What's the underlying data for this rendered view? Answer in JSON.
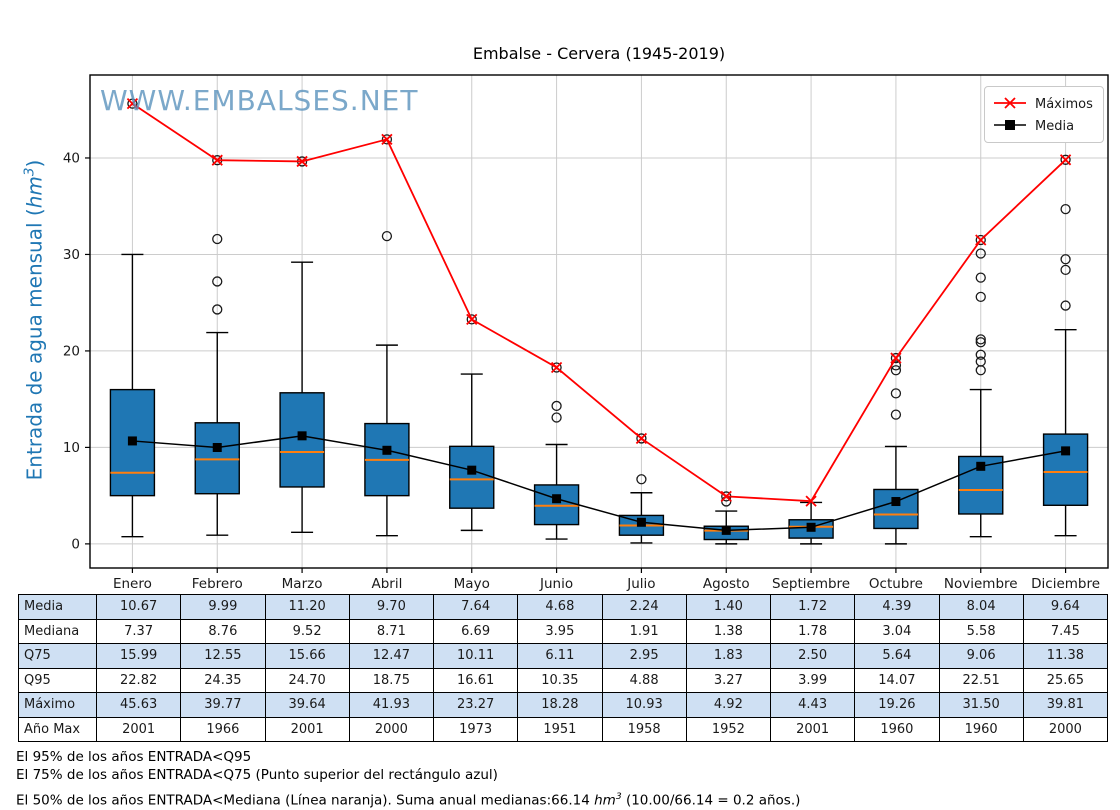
{
  "title": "Embalse - Cervera (1945-2019)",
  "watermark": "WWW.EMBALSES.NET",
  "y_axis": {
    "label_prefix": "Entrada de agua mensual (",
    "label_unit": "hm",
    "label_sup": "3",
    "label_suffix": ")"
  },
  "legend": {
    "maximos_label": "Máximos",
    "media_label": "Media"
  },
  "table": {
    "stripe_color": "#cfe0f3",
    "rows": [
      {
        "label": "Media",
        "values": [
          "10.67",
          "9.99",
          "11.20",
          "9.70",
          "7.64",
          "4.68",
          "2.24",
          "1.40",
          "1.72",
          "4.39",
          "8.04",
          "9.64"
        ]
      },
      {
        "label": "Mediana",
        "values": [
          "7.37",
          "8.76",
          "9.52",
          "8.71",
          "6.69",
          "3.95",
          "1.91",
          "1.38",
          "1.78",
          "3.04",
          "5.58",
          "7.45"
        ]
      },
      {
        "label": "Q75",
        "values": [
          "15.99",
          "12.55",
          "15.66",
          "12.47",
          "10.11",
          "6.11",
          "2.95",
          "1.83",
          "2.50",
          "5.64",
          "9.06",
          "11.38"
        ]
      },
      {
        "label": "Q95",
        "values": [
          "22.82",
          "24.35",
          "24.70",
          "18.75",
          "16.61",
          "10.35",
          "4.88",
          "3.27",
          "3.99",
          "14.07",
          "22.51",
          "25.65"
        ]
      },
      {
        "label": "Máximo",
        "values": [
          "45.63",
          "39.77",
          "39.64",
          "41.93",
          "23.27",
          "18.28",
          "10.93",
          "4.92",
          "4.43",
          "19.26",
          "31.50",
          "39.81"
        ]
      },
      {
        "label": "Año Max",
        "values": [
          "2001",
          "1966",
          "2001",
          "2000",
          "1973",
          "1951",
          "1958",
          "1952",
          "2001",
          "1960",
          "1960",
          "2000"
        ]
      }
    ]
  },
  "footer": {
    "line1": "El 95% de los años ENTRADA<Q95",
    "line2": "El 75% de los años ENTRADA<Q75 (Punto superior del rectángulo azul)",
    "line3_prefix": "El 50% de los años ENTRADA<Mediana (Línea naranja). Suma anual medianas:66.14 ",
    "line3_unit": "hm",
    "line3_sup": "3",
    "line3_suffix": " (10.00/66.14 = 0.2 años.)"
  },
  "chart_data": {
    "type": "box",
    "title": "Embalse - Cervera (1945-2019)",
    "ylabel": "Entrada de agua mensual (hm³)",
    "categories": [
      "Enero",
      "Febrero",
      "Marzo",
      "Abril",
      "Mayo",
      "Junio",
      "Julio",
      "Agosto",
      "Septiembre",
      "Octubre",
      "Noviembre",
      "Diciembre"
    ],
    "ylim": [
      -2.5,
      48.6
    ],
    "yticks": [
      0,
      10,
      20,
      30,
      40
    ],
    "grid": true,
    "legend_position": "upper right",
    "series": {
      "mediana": [
        7.37,
        8.76,
        9.52,
        8.71,
        6.69,
        3.95,
        1.91,
        1.38,
        1.78,
        3.04,
        5.58,
        7.45
      ],
      "q25": [
        5.0,
        5.2,
        5.9,
        5.0,
        3.7,
        2.0,
        0.9,
        0.45,
        0.6,
        1.6,
        3.1,
        4.0
      ],
      "q75": [
        15.99,
        12.55,
        15.66,
        12.47,
        10.11,
        6.11,
        2.95,
        1.83,
        2.5,
        5.64,
        9.06,
        11.38
      ],
      "q95": [
        22.82,
        24.35,
        24.7,
        18.75,
        16.61,
        10.35,
        4.88,
        3.27,
        3.99,
        14.07,
        22.51,
        25.65
      ],
      "whisker_low": [
        0.75,
        0.9,
        1.2,
        0.85,
        1.4,
        0.5,
        0.1,
        0.0,
        0.0,
        0.0,
        0.75,
        0.85
      ],
      "whisker_high": [
        30.0,
        21.9,
        29.2,
        20.6,
        17.6,
        10.3,
        5.3,
        3.4,
        4.3,
        10.1,
        16.0,
        22.2
      ],
      "media": [
        10.67,
        9.99,
        11.2,
        9.7,
        7.64,
        4.68,
        2.24,
        1.4,
        1.72,
        4.39,
        8.04,
        9.64
      ],
      "maximos": [
        45.63,
        39.77,
        39.64,
        41.93,
        23.27,
        18.28,
        10.93,
        4.92,
        4.43,
        19.26,
        31.5,
        39.81
      ],
      "outliers": [
        [
          45.63
        ],
        [
          39.77,
          31.6,
          27.2,
          24.3
        ],
        [
          39.64
        ],
        [
          41.93,
          31.9
        ],
        [
          23.27
        ],
        [
          18.28,
          14.3,
          13.1
        ],
        [
          10.93,
          6.7
        ],
        [
          4.92,
          4.4
        ],
        [],
        [
          19.26,
          18.5,
          18.0,
          15.6,
          13.4
        ],
        [
          31.5,
          30.1,
          27.6,
          25.6,
          21.2,
          20.9,
          19.6,
          18.9,
          18.0
        ],
        [
          39.81,
          34.7,
          29.5,
          28.4,
          24.7
        ]
      ]
    },
    "colors": {
      "box_fill": "#1f77b4",
      "median_line": "#ff7f0e",
      "maximos_line": "#ff0000",
      "media_line": "#000000",
      "grid": "#cccccc",
      "axis": "#000000",
      "ylabel_text": "#1f77b4",
      "watermark_text": "#5b93bd"
    }
  }
}
